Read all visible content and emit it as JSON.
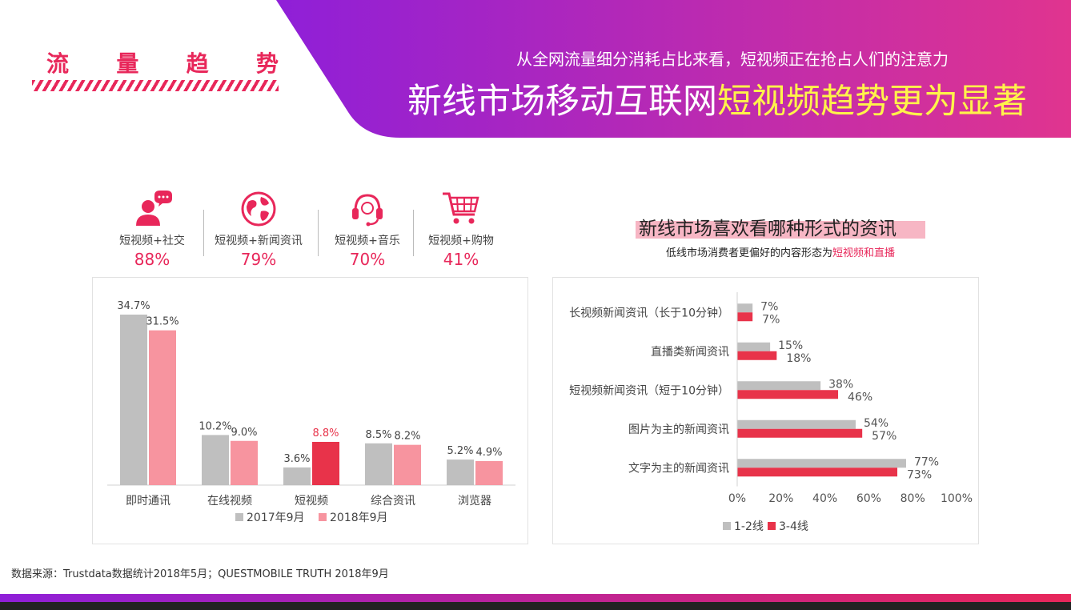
{
  "header": {
    "brand": [
      "流",
      "量",
      "趋",
      "势"
    ],
    "subtitle": "从全网流量细分消耗占比来看，短视频正在抢占人们的注意力",
    "headline_main": "新线市场移动互联网",
    "headline_highlight": "短视频趋势更为显著",
    "colors": {
      "purple": "#8f1fd8",
      "pink": "#e8275a",
      "highlight": "#fff34a"
    }
  },
  "stats": [
    {
      "icon": "user-chat-icon",
      "label": "短视频+社交",
      "value": "88%"
    },
    {
      "icon": "globe-icon",
      "label": "短视频+新闻资讯",
      "value": "79%"
    },
    {
      "icon": "headset-icon",
      "label": "短视频+音乐",
      "value": "70%"
    },
    {
      "icon": "cart-icon",
      "label": "短视频+购物",
      "value": "41%"
    }
  ],
  "right_chart_title": "新线市场喜欢看哪种形式的资讯",
  "right_chart_subtitle_pre": "低线市场消费者更偏好的内容形态为",
  "right_chart_subtitle_hl": "短视频和直播",
  "source": "数据来源：Trustdata数据统计2018年5月；QUESTMOBILE TRUTH 2018年9月",
  "chart_data": [
    {
      "type": "bar",
      "categories": [
        "即时通讯",
        "在线视频",
        "短视频",
        "综合资讯",
        "浏览器"
      ],
      "series": [
        {
          "name": "2017年9月",
          "values": [
            34.7,
            10.2,
            3.6,
            8.5,
            5.2
          ],
          "labels": [
            "34.7%",
            "10.2%",
            "3.6%",
            "8.5%",
            "5.2%"
          ],
          "color": "#bfbfbf"
        },
        {
          "name": "2018年9月",
          "values": [
            31.5,
            9.0,
            8.8,
            8.2,
            4.9
          ],
          "labels": [
            "31.5%",
            "9.0%",
            "8.8%",
            "8.2%",
            "4.9%"
          ],
          "color": "#f7949f"
        }
      ],
      "highlight": {
        "category": "短视频",
        "series": "2018年9月",
        "color": "#e8334a"
      },
      "ylim": [
        0,
        40
      ],
      "grid": false,
      "legend": "bottom"
    },
    {
      "type": "bar",
      "orientation": "horizontal",
      "categories": [
        "长视频新闻资讯（长于10分钟）",
        "直播类新闻资讯",
        "短视频新闻资讯（短于10分钟）",
        "图片为主的新闻资讯",
        "文字为主的新闻资讯"
      ],
      "series": [
        {
          "name": "1-2线",
          "values": [
            7,
            15,
            38,
            54,
            77
          ],
          "labels": [
            "7%",
            "15%",
            "38%",
            "54%",
            "77%"
          ],
          "color": "#bfbfbf"
        },
        {
          "name": "3-4线",
          "values": [
            7,
            18,
            46,
            57,
            73
          ],
          "labels": [
            "7%",
            "18%",
            "46%",
            "57%",
            "73%"
          ],
          "color": "#e8334a"
        }
      ],
      "xlim": [
        0,
        100
      ],
      "xticks": [
        "0%",
        "20%",
        "40%",
        "60%",
        "80%",
        "100%"
      ],
      "grid": false,
      "legend": "bottom"
    }
  ]
}
